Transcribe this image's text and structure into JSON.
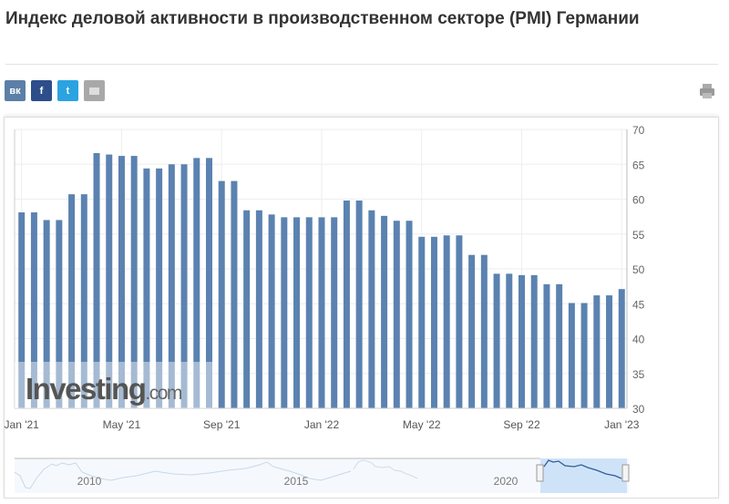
{
  "page": {
    "title": "Индекс деловой активности в производственном секторе (PMI) Германии"
  },
  "share": {
    "items": [
      {
        "icon": "vk-icon",
        "label": "вк",
        "color": "#5b7fa6"
      },
      {
        "icon": "facebook-icon",
        "label": "f",
        "color": "#2d4e8a"
      },
      {
        "icon": "twitter-icon",
        "label": "t",
        "color": "#2ba3e1"
      },
      {
        "icon": "email-icon",
        "label": "",
        "color": "#a8a8a8"
      }
    ],
    "print_icon": "printer-icon"
  },
  "chart_data": {
    "type": "bar",
    "title": "",
    "xlabel": "",
    "ylabel": "",
    "ylim": [
      30,
      70
    ],
    "yticks": [
      "30",
      "35",
      "40",
      "45",
      "50",
      "55",
      "60",
      "65",
      "70"
    ],
    "y_axis_side": "right",
    "grid": true,
    "bar_color": "#5b82b0",
    "x_tick_labels": [
      {
        "label": "Jan '21",
        "index": 0
      },
      {
        "label": "May '21",
        "index": 8
      },
      {
        "label": "Sep '21",
        "index": 16
      },
      {
        "label": "Jan '22",
        "index": 24
      },
      {
        "label": "May '22",
        "index": 32
      },
      {
        "label": "Sep '22",
        "index": 40
      },
      {
        "label": "Jan '23",
        "index": 48
      }
    ],
    "values": [
      58.1,
      58.1,
      57.0,
      57.0,
      60.7,
      60.7,
      66.6,
      66.4,
      66.2,
      66.2,
      64.4,
      64.4,
      65.0,
      65.0,
      65.9,
      65.9,
      62.6,
      62.6,
      58.4,
      58.4,
      57.8,
      57.4,
      57.4,
      57.4,
      57.4,
      57.4,
      59.8,
      59.8,
      58.4,
      57.6,
      56.9,
      56.9,
      54.6,
      54.6,
      54.8,
      54.8,
      52.0,
      52.0,
      49.3,
      49.3,
      49.1,
      49.1,
      47.8,
      47.8,
      45.1,
      45.1,
      46.2,
      46.2,
      47.1
    ],
    "navigator": {
      "labels": [
        "2010",
        "2015",
        "2020"
      ],
      "selection_color": "#cfe3f8"
    }
  },
  "watermark": {
    "brand": "Investing",
    "suffix": ".com"
  }
}
